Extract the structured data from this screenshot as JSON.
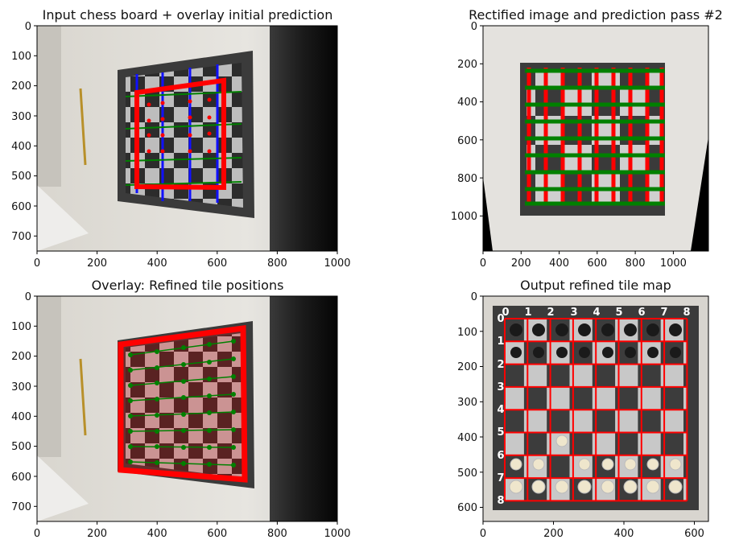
{
  "panels": [
    {
      "title": "Input chess board + overlay initial prediction",
      "xticks": [
        "0",
        "200",
        "400",
        "600",
        "800",
        "1000"
      ],
      "yticks": [
        "0",
        "100",
        "200",
        "300",
        "400",
        "500",
        "600",
        "700"
      ]
    },
    {
      "title": "Rectified image and prediction pass #2",
      "xticks": [
        "0",
        "200",
        "400",
        "600",
        "800",
        "1000"
      ],
      "yticks": [
        "0",
        "200",
        "400",
        "600",
        "800",
        "1000"
      ]
    },
    {
      "title": "Overlay: Refined tile positions",
      "xticks": [
        "0",
        "200",
        "400",
        "600",
        "800",
        "1000"
      ],
      "yticks": [
        "0",
        "100",
        "200",
        "300",
        "400",
        "500",
        "600",
        "700"
      ]
    },
    {
      "title": "Output refined tile map",
      "xticks": [
        "0",
        "200",
        "400",
        "600"
      ],
      "yticks": [
        "0",
        "100",
        "200",
        "300",
        "400",
        "500",
        "600"
      ],
      "grid_labels": [
        "0",
        "1",
        "2",
        "3",
        "4",
        "5",
        "6",
        "7",
        "8"
      ]
    }
  ],
  "chart_data": [
    {
      "type": "image",
      "title": "Input chess board + overlay initial prediction",
      "xlim": [
        0,
        1000
      ],
      "ylim": [
        750,
        0
      ],
      "overlay": "red quadrilateral initial board prediction with blue and green grid lines"
    },
    {
      "type": "image",
      "title": "Rectified image and prediction pass #2",
      "xlim": [
        0,
        1185
      ],
      "ylim": [
        1185,
        0
      ],
      "overlay": "red vertical and green horizontal grid line predictions on rectified board"
    },
    {
      "type": "image",
      "title": "Overlay: Refined tile positions",
      "xlim": [
        0,
        1000
      ],
      "ylim": [
        750,
        0
      ],
      "overlay": "red refined board outline with green tile center points"
    },
    {
      "type": "image",
      "title": "Output refined tile map",
      "xlim": [
        0,
        640
      ],
      "ylim": [
        640,
        0
      ],
      "grid_labels": [
        "0",
        "1",
        "2",
        "3",
        "4",
        "5",
        "6",
        "7",
        "8"
      ],
      "overlay": "8x8 red tile grid with row/column index labels 0-8"
    }
  ],
  "colors": {
    "red": "#ff0000",
    "green": "#008000",
    "blue": "#1010ff"
  }
}
